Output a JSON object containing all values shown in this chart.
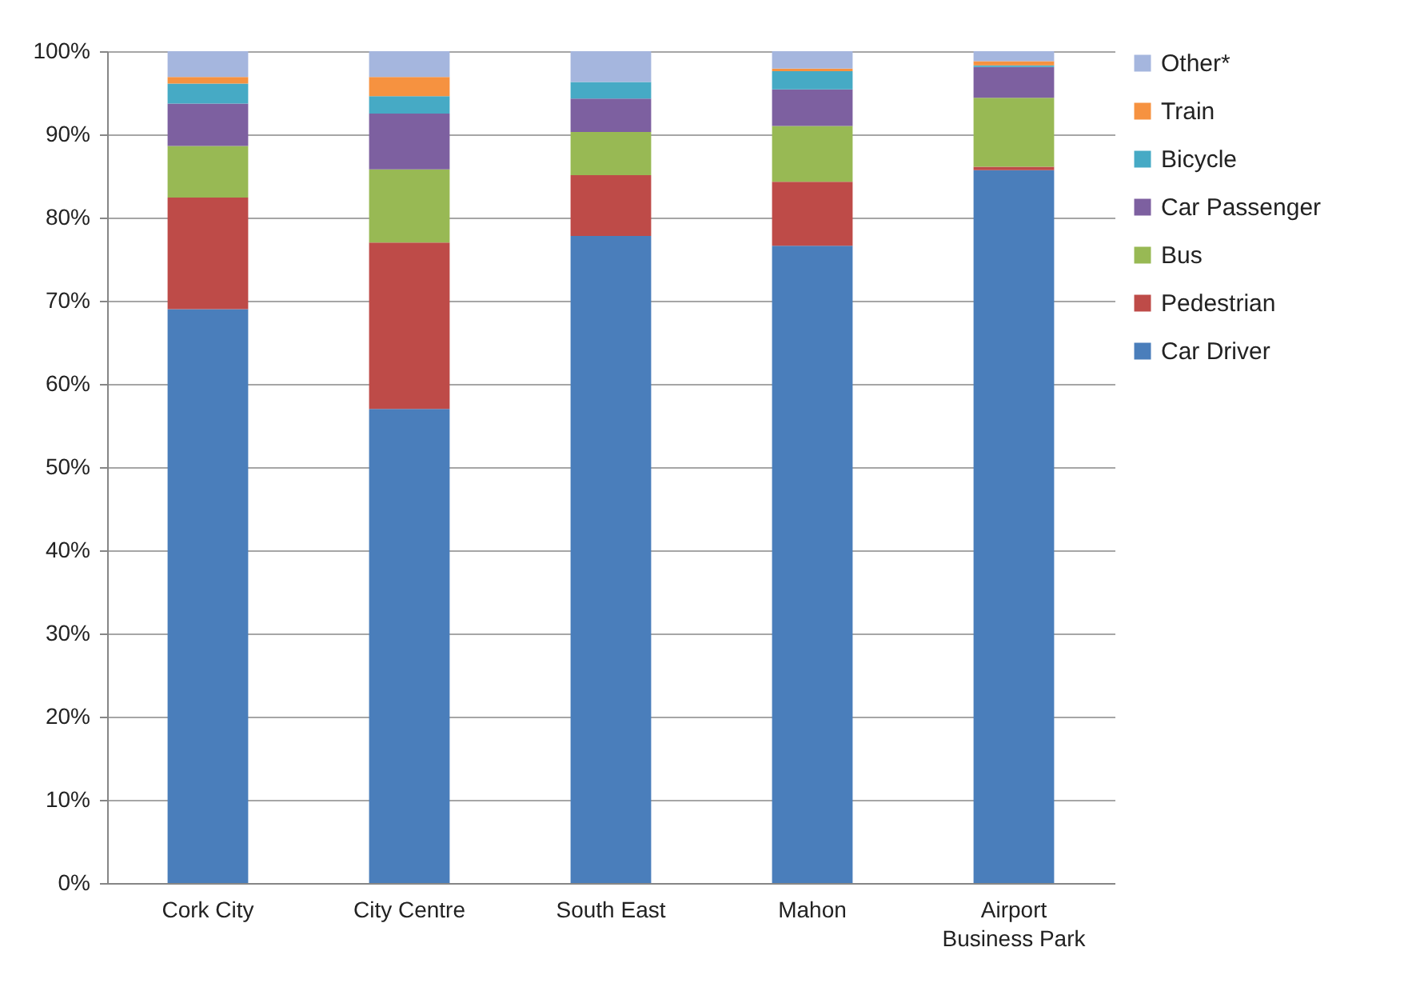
{
  "chart_data": {
    "type": "bar",
    "stacked": true,
    "categories": [
      "Cork City",
      "City Centre",
      "South East",
      "Mahon",
      "Airport Business Park"
    ],
    "series": [
      {
        "name": "Car Driver",
        "color": "#4a7ebb",
        "values": [
          69.0,
          57.0,
          77.8,
          76.6,
          85.7
        ]
      },
      {
        "name": "Pedestrian",
        "color": "#be4b48",
        "values": [
          13.4,
          20.0,
          7.3,
          7.7,
          0.4
        ]
      },
      {
        "name": "Bus",
        "color": "#98b954",
        "values": [
          6.2,
          8.8,
          5.2,
          6.7,
          8.3
        ]
      },
      {
        "name": "Car Passenger",
        "color": "#7d60a0",
        "values": [
          5.1,
          6.7,
          4.0,
          4.4,
          3.7
        ]
      },
      {
        "name": "Bicycle",
        "color": "#46aac5",
        "values": [
          2.4,
          2.1,
          2.0,
          2.2,
          0.2
        ]
      },
      {
        "name": "Train",
        "color": "#f69240",
        "values": [
          0.8,
          2.3,
          0.0,
          0.3,
          0.5
        ]
      },
      {
        "name": "Other*",
        "color": "#a5b6de",
        "values": [
          3.1,
          3.1,
          3.7,
          2.1,
          1.2
        ]
      }
    ],
    "ylim": [
      0,
      100
    ],
    "yticks": [
      {
        "value": 0,
        "label": "0%"
      },
      {
        "value": 10,
        "label": "10%"
      },
      {
        "value": 20,
        "label": "20%"
      },
      {
        "value": 30,
        "label": "30%"
      },
      {
        "value": 40,
        "label": "40%"
      },
      {
        "value": 50,
        "label": "50%"
      },
      {
        "value": 60,
        "label": "60%"
      },
      {
        "value": 70,
        "label": "70%"
      },
      {
        "value": 80,
        "label": "80%"
      },
      {
        "value": 90,
        "label": "90%"
      },
      {
        "value": 100,
        "label": "100%"
      }
    ],
    "grid": "y",
    "legend": "right"
  }
}
